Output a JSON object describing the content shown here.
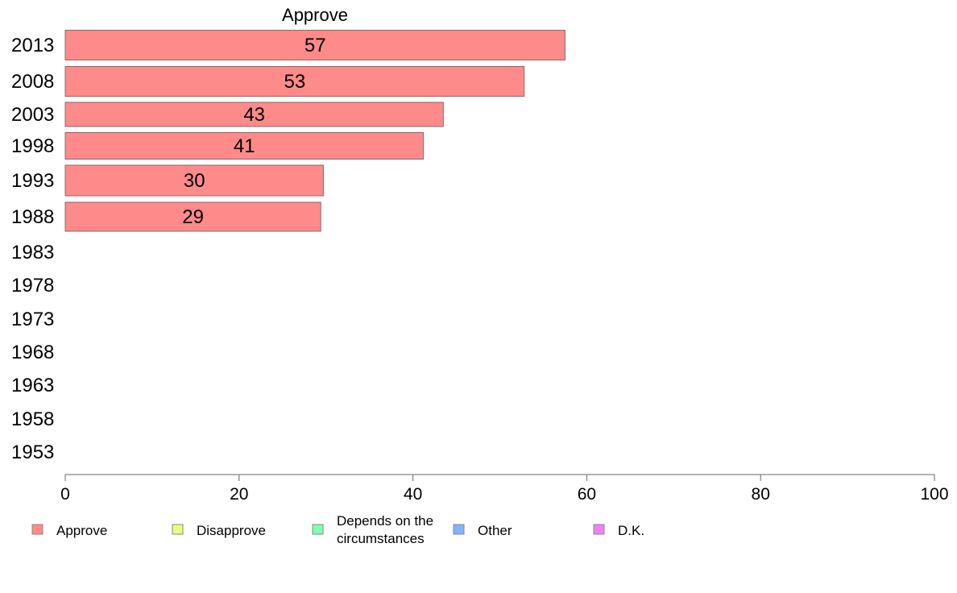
{
  "chart_data": {
    "type": "bar",
    "orientation": "horizontal",
    "title": "Approve",
    "categories": [
      "2013",
      "2008",
      "2003",
      "1998",
      "1993",
      "1988",
      "1983",
      "1978",
      "1973",
      "1968",
      "1963",
      "1958",
      "1953"
    ],
    "series": [
      {
        "name": "Approve",
        "color": "#ff8a8a",
        "values": [
          57.5,
          52.8,
          43.5,
          41.2,
          29.7,
          29.4,
          null,
          null,
          null,
          null,
          null,
          null,
          null
        ],
        "labels": [
          "57",
          "53",
          "43",
          "41",
          "30",
          "29",
          "",
          "",
          "",
          "",
          "",
          "",
          ""
        ]
      }
    ],
    "xlim": [
      0,
      100
    ],
    "xticks": [
      0,
      20,
      40,
      60,
      80,
      100
    ],
    "grid": false,
    "legend": {
      "placement": "bottom",
      "entries": [
        {
          "label": "Approve",
          "color": "#ff8a8a"
        },
        {
          "label": "Disapprove",
          "color": "#e8ff80"
        },
        {
          "label": "Depends on the circumstances",
          "lines": [
            "Depends on the",
            "circumstances"
          ],
          "color": "#80ffb0"
        },
        {
          "label": "Other",
          "color": "#80b4ff"
        },
        {
          "label": "D.K.",
          "color": "#f080ff"
        }
      ]
    }
  }
}
